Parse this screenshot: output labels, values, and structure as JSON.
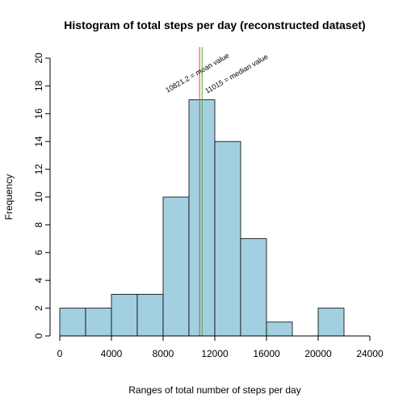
{
  "chart_data": {
    "type": "bar",
    "title": "Histogram of total steps per day (reconstructed dataset)",
    "xlabel": "Ranges of total number of steps per day",
    "ylabel": "Frequency",
    "bin_width": 2000,
    "bins": [
      {
        "start": 0,
        "end": 2000,
        "count": 2
      },
      {
        "start": 2000,
        "end": 4000,
        "count": 2
      },
      {
        "start": 4000,
        "end": 6000,
        "count": 3
      },
      {
        "start": 6000,
        "end": 8000,
        "count": 3
      },
      {
        "start": 8000,
        "end": 10000,
        "count": 10
      },
      {
        "start": 10000,
        "end": 12000,
        "count": 17
      },
      {
        "start": 12000,
        "end": 14000,
        "count": 14
      },
      {
        "start": 14000,
        "end": 16000,
        "count": 7
      },
      {
        "start": 16000,
        "end": 18000,
        "count": 1
      },
      {
        "start": 18000,
        "end": 20000,
        "count": 0
      },
      {
        "start": 20000,
        "end": 22000,
        "count": 2
      }
    ],
    "xlim": [
      0,
      24000
    ],
    "ylim": [
      0,
      20
    ],
    "x_ticks": [
      0,
      4000,
      8000,
      12000,
      16000,
      20000,
      24000
    ],
    "y_ticks": [
      0,
      2,
      4,
      6,
      8,
      10,
      12,
      14,
      16,
      18,
      20
    ],
    "bar_color": "#a2d0e0",
    "reference_lines": [
      {
        "value": 10821.2,
        "label": "10821.2 = mean value",
        "color": "#e8443a"
      },
      {
        "value": 11015,
        "label": "11015 = median value",
        "color": "#3cb043"
      }
    ]
  }
}
